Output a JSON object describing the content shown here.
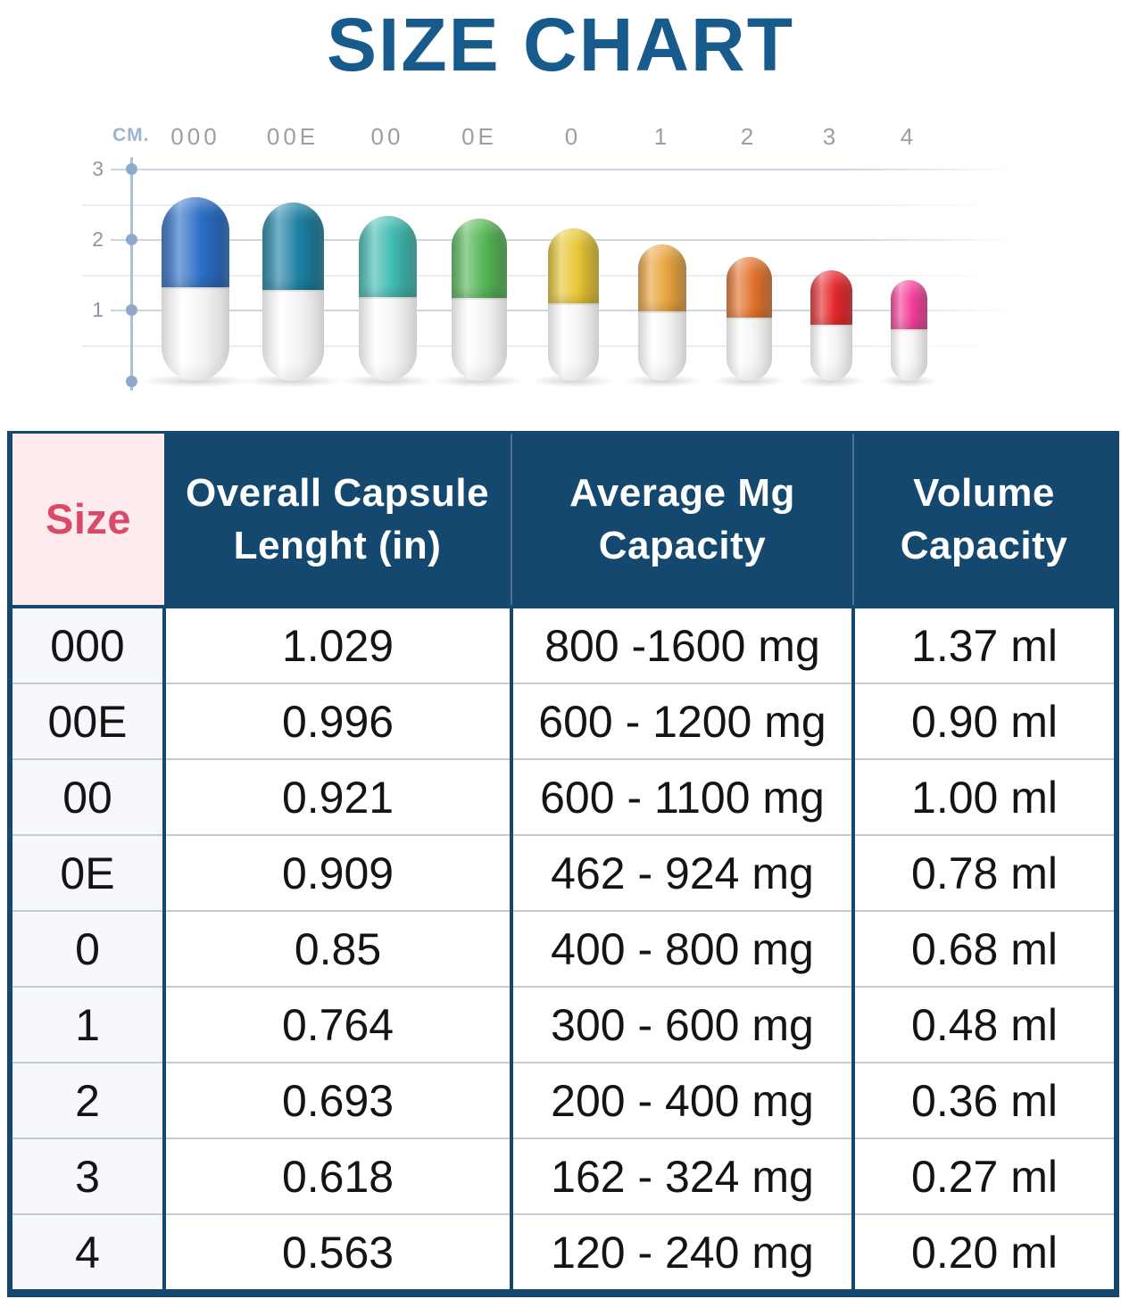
{
  "title": "SIZE CHART",
  "colors": {
    "title_blue": "#175a8c",
    "table_navy": "#15486e",
    "size_text_pink": "#d84a68",
    "size_header_bg": "#fdebee",
    "size_column_bg": "#f7f8fc",
    "axis_blue": "#8fa9cb",
    "gridline_gray": "#ccd6e2",
    "capsule_label_gray": "#9e9e9e"
  },
  "chart_data": {
    "type": "table",
    "title": "SIZE CHART",
    "columns": [
      "Size",
      "Overall Capsule Lenght (in)",
      "Average Mg Capacity",
      "Volume Capacity"
    ],
    "rows": [
      {
        "size": "000",
        "length_in": "1.029",
        "mg_capacity": "800 -1600 mg",
        "volume": "1.37 ml"
      },
      {
        "size": "00E",
        "length_in": "0.996",
        "mg_capacity": "600 - 1200 mg",
        "volume": "0.90 ml"
      },
      {
        "size": "00",
        "length_in": "0.921",
        "mg_capacity": "600 - 1100 mg",
        "volume": "1.00 ml"
      },
      {
        "size": "0E",
        "length_in": "0.909",
        "mg_capacity": "462 - 924 mg",
        "volume": "0.78 ml"
      },
      {
        "size": "0",
        "length_in": "0.85",
        "mg_capacity": "400 - 800 mg",
        "volume": "0.68 ml"
      },
      {
        "size": "1",
        "length_in": "0.764",
        "mg_capacity": "300 - 600 mg",
        "volume": "0.48 ml"
      },
      {
        "size": "2",
        "length_in": "0.693",
        "mg_capacity": "200 - 400 mg",
        "volume": "0.36 ml"
      },
      {
        "size": "3",
        "length_in": "0.618",
        "mg_capacity": "162 - 324 mg",
        "volume": "0.27 ml"
      },
      {
        "size": "4",
        "length_in": "0.563",
        "mg_capacity": "120 - 240 mg",
        "volume": "0.20 ml"
      }
    ],
    "pictograph": {
      "unit_label": "CM.",
      "axis_ticks": [
        "3",
        "2",
        "1"
      ],
      "ylim_cm": [
        0,
        3
      ],
      "capsules": [
        {
          "label": "000",
          "length_cm": 2.61,
          "color": "#2d6ec6"
        },
        {
          "label": "00E",
          "length_cm": 2.53,
          "color": "#1f81a4"
        },
        {
          "label": "00",
          "length_cm": 2.34,
          "color": "#41bcb2"
        },
        {
          "label": "0E",
          "length_cm": 2.31,
          "color": "#57b757"
        },
        {
          "label": "0",
          "length_cm": 2.16,
          "color": "#e7c636"
        },
        {
          "label": "1",
          "length_cm": 1.94,
          "color": "#eaa53f"
        },
        {
          "label": "2",
          "length_cm": 1.76,
          "color": "#e4742f"
        },
        {
          "label": "3",
          "length_cm": 1.57,
          "color": "#e5282c"
        },
        {
          "label": "4",
          "length_cm": 1.43,
          "color": "#f43f99"
        }
      ]
    }
  }
}
